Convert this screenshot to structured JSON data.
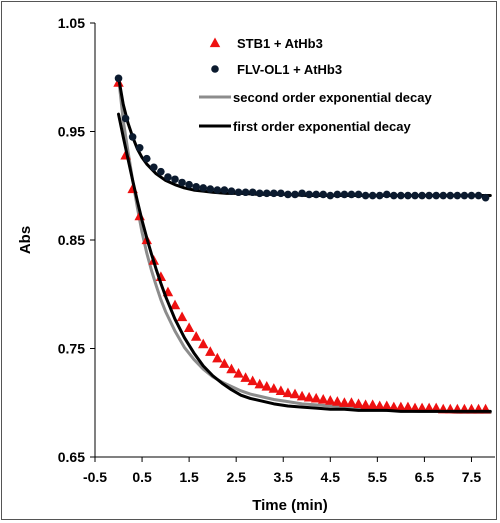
{
  "chart_data": {
    "type": "scatter",
    "xlabel": "Time (min)",
    "ylabel": "Abs",
    "xlim": [
      -0.5,
      8.0
    ],
    "ylim": [
      0.65,
      1.05
    ],
    "xticks": [
      -0.5,
      0.5,
      1.5,
      2.5,
      3.5,
      4.5,
      5.5,
      6.5,
      7.5
    ],
    "yticks": [
      0.65,
      0.75,
      0.85,
      0.95,
      1.05
    ],
    "x_tick_labels": [
      "-0.5",
      "0.5",
      "1.5",
      "2.5",
      "3.5",
      "4.5",
      "5.5",
      "6.5",
      "7.5"
    ],
    "y_tick_labels": [
      "0.65",
      "0.75",
      "0.85",
      "0.95",
      "1.05"
    ],
    "legend_position": "top-right",
    "series": [
      {
        "name": "STB1 + AtHb3",
        "kind": "markers",
        "marker": "triangle",
        "color": "#ee1111",
        "x": [
          0.0,
          0.15,
          0.3,
          0.45,
          0.6,
          0.75,
          0.9,
          1.05,
          1.2,
          1.35,
          1.5,
          1.65,
          1.8,
          1.95,
          2.1,
          2.25,
          2.4,
          2.55,
          2.7,
          2.85,
          3.0,
          3.15,
          3.3,
          3.45,
          3.6,
          3.75,
          3.9,
          4.05,
          4.2,
          4.35,
          4.5,
          4.65,
          4.8,
          4.95,
          5.1,
          5.25,
          5.4,
          5.55,
          5.7,
          5.85,
          6.0,
          6.15,
          6.3,
          6.45,
          6.6,
          6.75,
          6.9,
          7.05,
          7.2,
          7.35,
          7.5,
          7.65,
          7.8
        ],
        "y": [
          0.995,
          0.928,
          0.897,
          0.872,
          0.85,
          0.831,
          0.816,
          0.802,
          0.79,
          0.779,
          0.769,
          0.761,
          0.754,
          0.747,
          0.741,
          0.736,
          0.731,
          0.727,
          0.723,
          0.72,
          0.717,
          0.715,
          0.713,
          0.711,
          0.709,
          0.708,
          0.706,
          0.705,
          0.704,
          0.703,
          0.702,
          0.701,
          0.7,
          0.7,
          0.699,
          0.698,
          0.698,
          0.697,
          0.697,
          0.696,
          0.696,
          0.696,
          0.695,
          0.695,
          0.695,
          0.695,
          0.694,
          0.694,
          0.694,
          0.694,
          0.694,
          0.694,
          0.694
        ]
      },
      {
        "name": "FLV-OL1 + AtHb3",
        "kind": "markers",
        "marker": "circle",
        "color": "#0b1a2e",
        "x": [
          0.0,
          0.15,
          0.3,
          0.45,
          0.6,
          0.75,
          0.9,
          1.05,
          1.2,
          1.35,
          1.5,
          1.65,
          1.8,
          1.95,
          2.1,
          2.25,
          2.4,
          2.55,
          2.7,
          2.85,
          3.0,
          3.15,
          3.3,
          3.45,
          3.6,
          3.75,
          3.9,
          4.05,
          4.2,
          4.35,
          4.5,
          4.65,
          4.8,
          4.95,
          5.1,
          5.25,
          5.4,
          5.55,
          5.7,
          5.85,
          6.0,
          6.15,
          6.3,
          6.45,
          6.6,
          6.75,
          6.9,
          7.05,
          7.2,
          7.35,
          7.5,
          7.65,
          7.8
        ],
        "y": [
          0.999,
          0.962,
          0.945,
          0.935,
          0.925,
          0.917,
          0.913,
          0.908,
          0.906,
          0.903,
          0.901,
          0.899,
          0.898,
          0.897,
          0.896,
          0.896,
          0.895,
          0.894,
          0.894,
          0.894,
          0.893,
          0.893,
          0.893,
          0.893,
          0.892,
          0.892,
          0.893,
          0.892,
          0.892,
          0.892,
          0.891,
          0.892,
          0.892,
          0.892,
          0.892,
          0.891,
          0.891,
          0.891,
          0.892,
          0.891,
          0.891,
          0.891,
          0.891,
          0.891,
          0.891,
          0.891,
          0.891,
          0.891,
          0.891,
          0.891,
          0.891,
          0.891,
          0.889
        ]
      },
      {
        "name": "second order exponential decay",
        "kind": "line",
        "color": "#8c8c8c",
        "x": [
          0.0,
          0.1,
          0.2,
          0.3,
          0.4,
          0.5,
          0.6,
          0.7,
          0.8,
          0.9,
          1.0,
          1.2,
          1.4,
          1.6,
          1.8,
          2.0,
          2.2,
          2.4,
          2.6,
          2.8,
          3.0,
          3.3,
          3.6,
          3.9,
          4.2,
          4.5,
          4.8,
          5.1,
          5.4,
          5.7,
          6.0,
          6.4,
          6.8,
          7.2,
          7.6,
          7.9
        ],
        "y": [
          1.0,
          0.96,
          0.932,
          0.905,
          0.88,
          0.857,
          0.838,
          0.822,
          0.808,
          0.795,
          0.784,
          0.766,
          0.751,
          0.74,
          0.731,
          0.724,
          0.719,
          0.715,
          0.711,
          0.708,
          0.706,
          0.703,
          0.701,
          0.699,
          0.698,
          0.697,
          0.696,
          0.695,
          0.694,
          0.693,
          0.693,
          0.692,
          0.692,
          0.691,
          0.691,
          0.691
        ]
      },
      {
        "name": "first order exponential decay",
        "kind": "line",
        "color": "#000000",
        "x": [
          0.0,
          0.1,
          0.2,
          0.3,
          0.4,
          0.5,
          0.6,
          0.7,
          0.8,
          0.9,
          1.0,
          1.2,
          1.4,
          1.6,
          1.8,
          2.0,
          2.2,
          2.4,
          2.6,
          2.8,
          3.0,
          3.3,
          3.6,
          3.9,
          4.2,
          4.5,
          4.8,
          5.1,
          5.4,
          5.7,
          6.0,
          6.4,
          6.8,
          7.2,
          7.6,
          7.9
        ],
        "y": [
          0.966,
          0.945,
          0.925,
          0.905,
          0.886,
          0.868,
          0.852,
          0.837,
          0.823,
          0.81,
          0.798,
          0.777,
          0.76,
          0.746,
          0.734,
          0.725,
          0.718,
          0.712,
          0.707,
          0.704,
          0.702,
          0.699,
          0.697,
          0.696,
          0.695,
          0.694,
          0.694,
          0.693,
          0.693,
          0.693,
          0.692,
          0.692,
          0.692,
          0.692,
          0.692,
          0.692
        ]
      },
      {
        "name": "",
        "kind": "line",
        "color": "#000000",
        "x": [
          0.0,
          0.1,
          0.2,
          0.3,
          0.4,
          0.5,
          0.6,
          0.8,
          1.0,
          1.2,
          1.4,
          1.6,
          1.8,
          2.0,
          2.3,
          2.6,
          3.0,
          3.5,
          4.0,
          5.0,
          6.0,
          7.0,
          7.9
        ],
        "y": [
          1.0,
          0.975,
          0.958,
          0.945,
          0.934,
          0.926,
          0.92,
          0.911,
          0.905,
          0.901,
          0.898,
          0.896,
          0.895,
          0.894,
          0.893,
          0.893,
          0.892,
          0.892,
          0.891,
          0.891,
          0.891,
          0.891,
          0.891
        ]
      }
    ]
  }
}
